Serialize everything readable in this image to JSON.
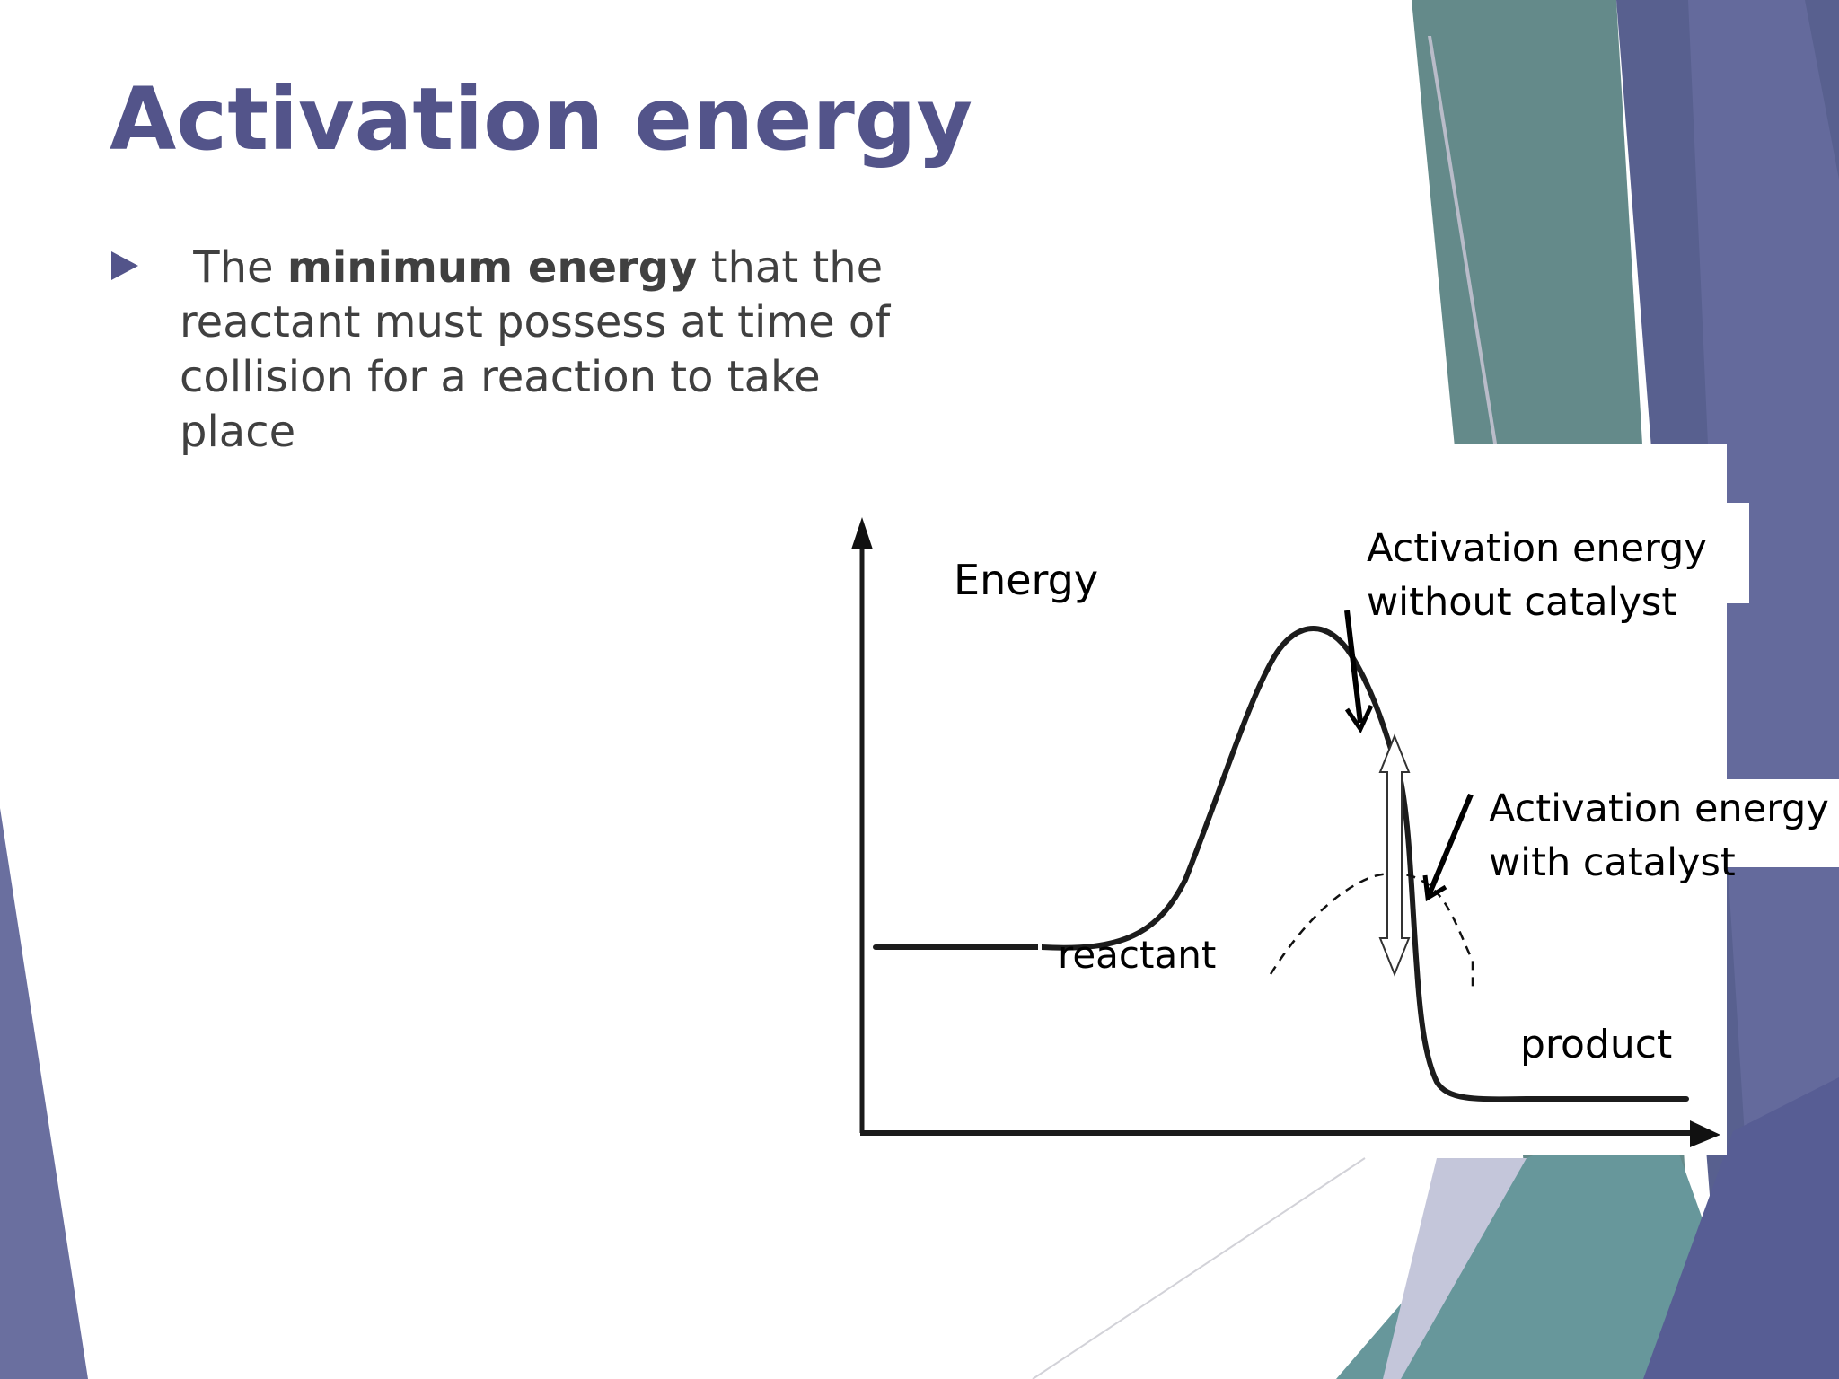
{
  "slide": {
    "title": "Activation energy",
    "bullet": {
      "lead": "The",
      "emphasis": "minimum energy",
      "rest": "that the reactant must possess at time of collision for a reaction to take place",
      "marker_icon": "triangle-bullet-icon"
    }
  },
  "diagram": {
    "y_axis_label": "Energy",
    "reactant_label": "reactant",
    "product_label": "product",
    "label_without_catalyst": [
      "Activation energy",
      "without catalyst"
    ],
    "label_with_catalyst": [
      "Activation energy",
      "with catalyst"
    ]
  },
  "colors": {
    "accent_purple": "#53548a",
    "teal": "#5f8f91",
    "slate_blue": "#5a6496",
    "body_text": "#404040"
  }
}
